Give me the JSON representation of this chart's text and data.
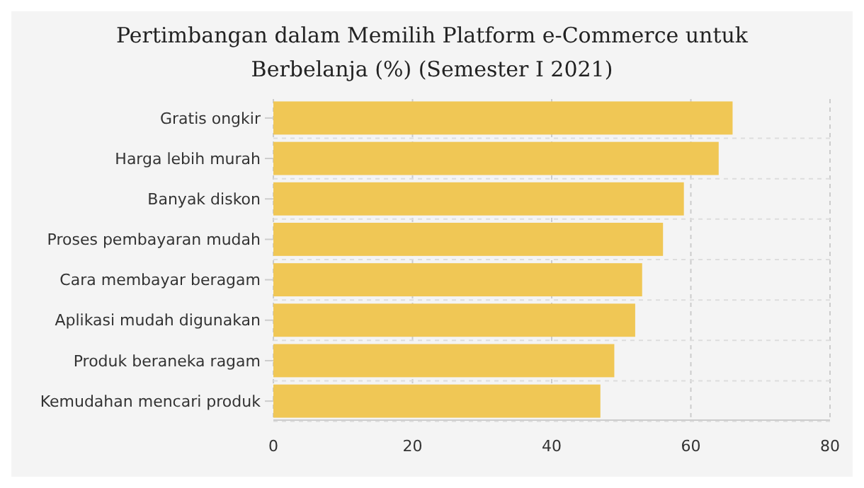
{
  "chart_data": {
    "type": "bar",
    "orientation": "horizontal",
    "title": "Pertimbangan dalam Memilih Platform e-Commerce untuk Berbelanja (%) (Semester I 2021)",
    "categories": [
      "Gratis ongkir",
      "Harga lebih murah",
      "Banyak diskon",
      "Proses pembayaran mudah",
      "Cara membayar beragam",
      "Aplikasi mudah digunakan",
      "Produk beraneka ragam",
      "Kemudahan mencari produk"
    ],
    "values": [
      66,
      64,
      59,
      56,
      53,
      52,
      49,
      47
    ],
    "color": "#f0c755",
    "xlim": [
      0,
      80
    ],
    "xticks": [
      0,
      20,
      40,
      60,
      80
    ],
    "grid": true
  }
}
